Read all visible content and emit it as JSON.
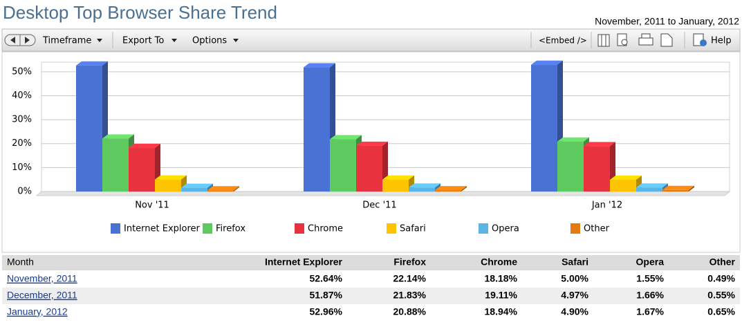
{
  "title": "Desktop Top Browser Share Trend",
  "date_range": "November, 2011 to January, 2012",
  "toolbar": {
    "timeframe": "Timeframe",
    "export": "Export To",
    "options": "Options",
    "embed": "<Embed />",
    "help": "Help"
  },
  "chart_data": {
    "type": "bar",
    "categories": [
      "Nov '11",
      "Dec '11",
      "Jan '12"
    ],
    "series": [
      {
        "name": "Internet Explorer",
        "color": "#4a72d4",
        "values": [
          52.64,
          51.87,
          52.96
        ]
      },
      {
        "name": "Firefox",
        "color": "#5fca5f",
        "values": [
          22.14,
          21.83,
          20.88
        ]
      },
      {
        "name": "Chrome",
        "color": "#e8323e",
        "values": [
          18.18,
          19.11,
          18.94
        ]
      },
      {
        "name": "Safari",
        "color": "#ffc400",
        "values": [
          5.0,
          4.97,
          4.9
        ]
      },
      {
        "name": "Opera",
        "color": "#5ab4e8",
        "values": [
          1.55,
          1.66,
          1.67
        ]
      },
      {
        "name": "Other",
        "color": "#e57a10",
        "values": [
          0.49,
          0.55,
          0.65
        ]
      }
    ],
    "ylim": [
      0,
      54
    ],
    "yticks": [
      {
        "value": 0,
        "label": "0%"
      },
      {
        "value": 10,
        "label": "10%"
      },
      {
        "value": 20,
        "label": "20%"
      },
      {
        "value": 30,
        "label": "30%"
      },
      {
        "value": 40,
        "label": "40%"
      },
      {
        "value": 50,
        "label": "50%"
      }
    ],
    "grid": true
  },
  "table": {
    "header": [
      "Month",
      "Internet Explorer",
      "Firefox",
      "Chrome",
      "Safari",
      "Opera",
      "Other"
    ],
    "rows": [
      [
        "November, 2011",
        "52.64%",
        "22.14%",
        "18.18%",
        "5.00%",
        "1.55%",
        "0.49%"
      ],
      [
        "December, 2011",
        "51.87%",
        "21.83%",
        "19.11%",
        "4.97%",
        "1.66%",
        "0.55%"
      ],
      [
        "January, 2012",
        "52.96%",
        "20.88%",
        "18.94%",
        "4.90%",
        "1.67%",
        "0.65%"
      ]
    ]
  }
}
